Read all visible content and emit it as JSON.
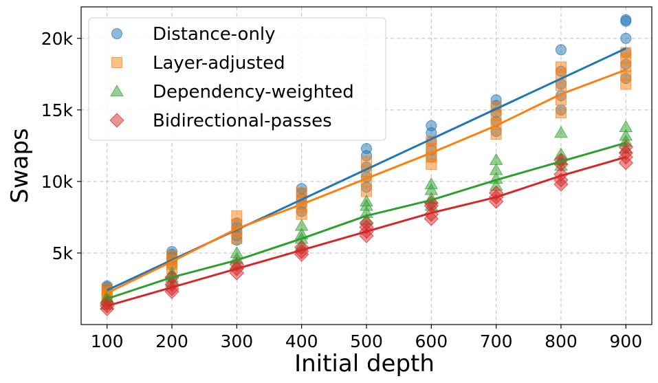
{
  "chart_data": {
    "type": "scatter",
    "xlabel": "Initial depth",
    "ylabel": "Swaps",
    "xlim": [
      60,
      940
    ],
    "ylim": [
      0,
      22200
    ],
    "x_ticks": [
      100,
      200,
      300,
      400,
      500,
      600,
      700,
      800,
      900
    ],
    "x_tick_labels": [
      "100",
      "200",
      "300",
      "400",
      "500",
      "600",
      "700",
      "800",
      "900"
    ],
    "y_ticks": [
      5000,
      10000,
      15000,
      20000
    ],
    "y_tick_labels": [
      "5k",
      "10k",
      "15k",
      "20k"
    ],
    "grid": true,
    "legend_position": "top-left",
    "series": [
      {
        "name": "Distance-only",
        "marker": "circle",
        "color": "#1f77b4",
        "points": [
          [
            100,
            2100
          ],
          [
            100,
            2300
          ],
          [
            100,
            2500
          ],
          [
            100,
            2600
          ],
          [
            100,
            2700
          ],
          [
            200,
            4200
          ],
          [
            200,
            4500
          ],
          [
            200,
            4700
          ],
          [
            200,
            4900
          ],
          [
            200,
            5100
          ],
          [
            300,
            5900
          ],
          [
            300,
            6200
          ],
          [
            300,
            6500
          ],
          [
            300,
            6800
          ],
          [
            300,
            7100
          ],
          [
            400,
            7900
          ],
          [
            400,
            8400
          ],
          [
            400,
            8800
          ],
          [
            400,
            9200
          ],
          [
            400,
            9500
          ],
          [
            500,
            9600
          ],
          [
            500,
            10300
          ],
          [
            500,
            11000
          ],
          [
            500,
            11800
          ],
          [
            500,
            12300
          ],
          [
            600,
            11700
          ],
          [
            600,
            12200
          ],
          [
            600,
            12800
          ],
          [
            600,
            13400
          ],
          [
            600,
            13900
          ],
          [
            700,
            13500
          ],
          [
            700,
            14200
          ],
          [
            700,
            14800
          ],
          [
            700,
            15300
          ],
          [
            700,
            15700
          ],
          [
            800,
            15000
          ],
          [
            800,
            16000
          ],
          [
            800,
            16800
          ],
          [
            800,
            17700
          ],
          [
            800,
            19200
          ],
          [
            900,
            17200
          ],
          [
            900,
            18200
          ],
          [
            900,
            19000
          ],
          [
            900,
            20000
          ],
          [
            900,
            21200
          ],
          [
            900,
            21300
          ]
        ],
        "trend": [
          [
            100,
            2400
          ],
          [
            900,
            19300
          ]
        ]
      },
      {
        "name": "Layer-adjusted",
        "marker": "square",
        "color": "#ff7f0e",
        "points": [
          [
            100,
            1900
          ],
          [
            100,
            2100
          ],
          [
            100,
            2300
          ],
          [
            100,
            2500
          ],
          [
            200,
            3900
          ],
          [
            200,
            4200
          ],
          [
            200,
            4500
          ],
          [
            200,
            4800
          ],
          [
            300,
            6000
          ],
          [
            300,
            6500
          ],
          [
            300,
            7000
          ],
          [
            300,
            7600
          ],
          [
            400,
            7700
          ],
          [
            400,
            8200
          ],
          [
            400,
            8700
          ],
          [
            400,
            9200
          ],
          [
            500,
            9300
          ],
          [
            500,
            10000
          ],
          [
            500,
            10700
          ],
          [
            500,
            11400
          ],
          [
            600,
            11200
          ],
          [
            600,
            11700
          ],
          [
            600,
            12300
          ],
          [
            600,
            12800
          ],
          [
            700,
            13300
          ],
          [
            700,
            14000
          ],
          [
            700,
            14600
          ],
          [
            700,
            15200
          ],
          [
            800,
            14800
          ],
          [
            800,
            15700
          ],
          [
            800,
            16700
          ],
          [
            800,
            17500
          ],
          [
            800,
            18000
          ],
          [
            900,
            16800
          ],
          [
            900,
            17400
          ],
          [
            900,
            18000
          ],
          [
            900,
            18600
          ],
          [
            900,
            19000
          ]
        ],
        "trend": [
          [
            100,
            2200
          ],
          [
            200,
            4400
          ],
          [
            300,
            6700
          ],
          [
            400,
            8400
          ],
          [
            500,
            10200
          ],
          [
            600,
            12000
          ],
          [
            700,
            13900
          ],
          [
            800,
            16100
          ],
          [
            900,
            17800
          ]
        ]
      },
      {
        "name": "Dependency-weighted",
        "marker": "triangle",
        "color": "#2ca02c",
        "points": [
          [
            100,
            1400
          ],
          [
            100,
            1700
          ],
          [
            100,
            1900
          ],
          [
            200,
            3000
          ],
          [
            200,
            3300
          ],
          [
            200,
            3600
          ],
          [
            300,
            4200
          ],
          [
            300,
            4600
          ],
          [
            300,
            5000
          ],
          [
            400,
            5500
          ],
          [
            400,
            6000
          ],
          [
            400,
            6300
          ],
          [
            400,
            6900
          ],
          [
            500,
            7300
          ],
          [
            500,
            7800
          ],
          [
            500,
            8300
          ],
          [
            500,
            8600
          ],
          [
            600,
            8300
          ],
          [
            600,
            8800
          ],
          [
            600,
            9400
          ],
          [
            600,
            9800
          ],
          [
            700,
            9700
          ],
          [
            700,
            10200
          ],
          [
            700,
            10800
          ],
          [
            700,
            11500
          ],
          [
            800,
            11100
          ],
          [
            800,
            11500
          ],
          [
            800,
            11900
          ],
          [
            800,
            13400
          ],
          [
            900,
            12300
          ],
          [
            900,
            12800
          ],
          [
            900,
            13200
          ],
          [
            900,
            13800
          ]
        ],
        "trend": [
          [
            100,
            1800
          ],
          [
            200,
            3300
          ],
          [
            300,
            4500
          ],
          [
            400,
            6000
          ],
          [
            500,
            7600
          ],
          [
            600,
            8700
          ],
          [
            700,
            10100
          ],
          [
            800,
            11400
          ],
          [
            900,
            12700
          ]
        ]
      },
      {
        "name": "Bidirectional-passes",
        "marker": "diamond",
        "color": "#d62728",
        "points": [
          [
            100,
            1100
          ],
          [
            100,
            1300
          ],
          [
            100,
            1500
          ],
          [
            200,
            2300
          ],
          [
            200,
            2500
          ],
          [
            200,
            2800
          ],
          [
            200,
            3300
          ],
          [
            300,
            3600
          ],
          [
            300,
            3900
          ],
          [
            300,
            4200
          ],
          [
            400,
            4900
          ],
          [
            400,
            5100
          ],
          [
            400,
            5400
          ],
          [
            500,
            6200
          ],
          [
            500,
            6500
          ],
          [
            500,
            6800
          ],
          [
            500,
            7100
          ],
          [
            600,
            7400
          ],
          [
            600,
            7700
          ],
          [
            600,
            8300
          ],
          [
            600,
            8500
          ],
          [
            700,
            8600
          ],
          [
            700,
            8900
          ],
          [
            700,
            9200
          ],
          [
            800,
            9800
          ],
          [
            800,
            10100
          ],
          [
            800,
            10500
          ],
          [
            800,
            11200
          ],
          [
            800,
            11500
          ],
          [
            900,
            11300
          ],
          [
            900,
            11700
          ],
          [
            900,
            12000
          ],
          [
            900,
            12400
          ]
        ],
        "trend": [
          [
            100,
            1300
          ],
          [
            200,
            2600
          ],
          [
            300,
            3900
          ],
          [
            400,
            5200
          ],
          [
            500,
            6500
          ],
          [
            600,
            7800
          ],
          [
            700,
            8900
          ],
          [
            800,
            10400
          ],
          [
            900,
            11700
          ]
        ]
      }
    ]
  }
}
